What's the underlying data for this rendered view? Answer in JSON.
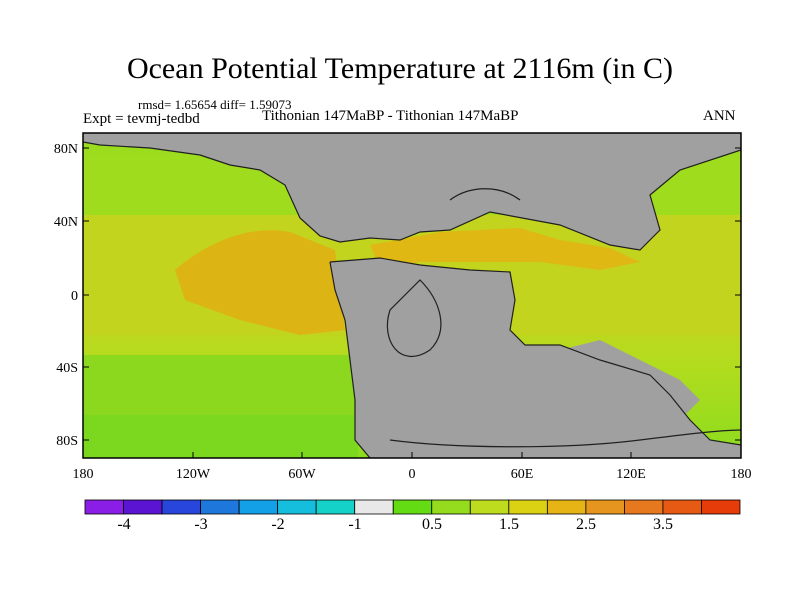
{
  "header": {
    "title": "Ocean Potential Temperature at 2116m (in C)",
    "stats": "rmsd= 1.65654 diff= 1.59073",
    "expt": "Expt = tevmj-tedbd",
    "experiment_range": "Tithonian 147MaBP - Tithonian 147MaBP",
    "season": "ANN"
  },
  "axes": {
    "lat_ticks": [
      "80N",
      "40N",
      "0",
      "40S",
      "80S"
    ],
    "lon_ticks": [
      "180",
      "120W",
      "60W",
      "0",
      "60E",
      "120E",
      "180"
    ]
  },
  "colorbar": {
    "colors": [
      "#8a1ee6",
      "#5a14d2",
      "#2846dc",
      "#1e78dc",
      "#14a0e6",
      "#14bedc",
      "#14d2c8",
      "#e8e8e8",
      "#64dc14",
      "#96dc1e",
      "#bedc1e",
      "#dcd214",
      "#e6b414",
      "#e6961e",
      "#e6781e",
      "#e65a14",
      "#e63c0a"
    ],
    "labels": [
      "-4",
      "-3",
      "-2",
      "-1",
      "0.5",
      "1.5",
      "2.5",
      "3.5"
    ]
  },
  "palette": {
    "land": "#a0a0a0",
    "coast": "#202020"
  }
}
